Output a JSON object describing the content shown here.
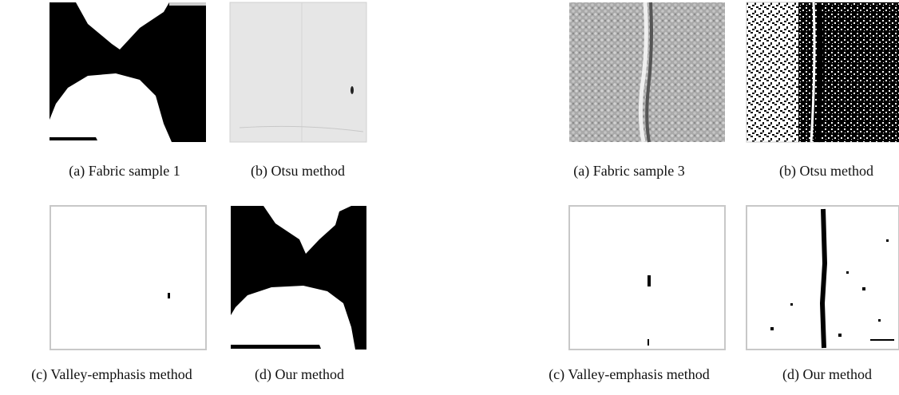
{
  "figures": [
    {
      "panels": [
        {
          "caption": "(a) Fabric sample 1"
        },
        {
          "caption": "(b) Otsu method"
        },
        {
          "caption": "(c) Valley-emphasis method"
        },
        {
          "caption": "(d) Our method"
        }
      ]
    },
    {
      "panels": [
        {
          "caption": "(a) Fabric sample 3"
        },
        {
          "caption": "(b) Otsu method"
        },
        {
          "caption": "(c) Valley-emphasis method"
        },
        {
          "caption": "(d) Our method"
        }
      ]
    }
  ]
}
